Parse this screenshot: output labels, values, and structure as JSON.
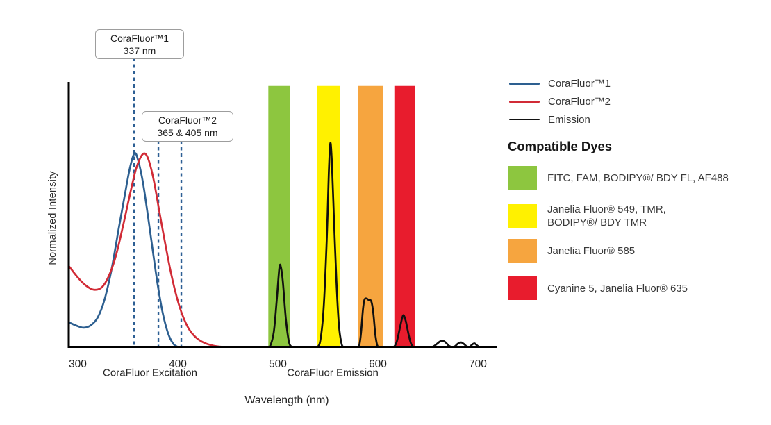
{
  "axes": {
    "y_label": "Normalized Intensity",
    "x_label": "Wavelength (nm)",
    "x_ticks": [
      {
        "value": 300,
        "label": "300"
      },
      {
        "value": 400,
        "label": "400"
      },
      {
        "value": 500,
        "label": "500"
      },
      {
        "value": 600,
        "label": "600"
      },
      {
        "value": 700,
        "label": "700"
      }
    ],
    "section_labels": [
      "CoraFluor Excitation",
      "CoraFluor Emission"
    ]
  },
  "annotations": [
    {
      "title": "CoraFluor™1",
      "subtitle": "337 nm"
    },
    {
      "title": "CoraFluor™2",
      "subtitle": "365 & 405 nm"
    }
  ],
  "legend": {
    "items": [
      {
        "label": "CoraFluor™1",
        "color": "#2d5f90"
      },
      {
        "label": "CoraFluor™2",
        "color": "#d12b36"
      },
      {
        "label": "Emission",
        "color": "#111111"
      }
    ]
  },
  "compatible_dyes": {
    "heading": "Compatible Dyes",
    "items": [
      {
        "color": "#8dc63f",
        "lines": [
          "FITC, FAM, BODIPY®/ BDY FL, AF488"
        ]
      },
      {
        "color": "#fff100",
        "lines": [
          "Janelia Fluor® 549, TMR,",
          "BODIPY®/ BDY TMR"
        ]
      },
      {
        "color": "#f6a53f",
        "lines": [
          "Janelia Fluor® 585"
        ]
      },
      {
        "color": "#e81c2d",
        "lines": [
          "Cyanine 5, Janelia Fluor® 635"
        ]
      }
    ]
  },
  "chart_data": {
    "type": "line",
    "x_unit": "nm",
    "x_range": [
      291.7,
      719.4
    ],
    "ylim": [
      0,
      1
    ],
    "grid": false,
    "excitation_guide_lines_nm": [
      356.3,
      380.6,
      403.5
    ],
    "guide_line_color": "#2d5f94",
    "bands": [
      {
        "name": "green-band",
        "color": "#8dc63f",
        "start_nm": 490.5,
        "end_nm": 512.5,
        "top": 0.985
      },
      {
        "name": "yellow-band",
        "color": "#fff100",
        "start_nm": 539.5,
        "end_nm": 562.5,
        "top": 0.985
      },
      {
        "name": "orange-band",
        "color": "#f6a53f",
        "start_nm": 580.0,
        "end_nm": 605.5,
        "top": 0.985
      },
      {
        "name": "red-band",
        "color": "#e81c2d",
        "start_nm": 616.5,
        "end_nm": 637.5,
        "top": 0.985
      }
    ],
    "series": [
      {
        "name": "CoraFluor™1 excitation",
        "color": "#2d5f90",
        "points": [
          [
            291.7,
            0.095
          ],
          [
            299,
            0.083
          ],
          [
            306,
            0.076
          ],
          [
            313,
            0.085
          ],
          [
            320,
            0.115
          ],
          [
            327,
            0.185
          ],
          [
            334,
            0.3
          ],
          [
            341,
            0.45
          ],
          [
            347,
            0.575
          ],
          [
            352,
            0.675
          ],
          [
            356.5,
            0.731
          ],
          [
            360,
            0.71
          ],
          [
            365,
            0.625
          ],
          [
            370,
            0.5
          ],
          [
            375,
            0.365
          ],
          [
            380,
            0.235
          ],
          [
            385,
            0.13
          ],
          [
            390,
            0.058
          ],
          [
            395,
            0.018
          ],
          [
            400,
            0.003
          ],
          [
            405,
            0
          ]
        ]
      },
      {
        "name": "CoraFluor™2 excitation",
        "color": "#d12b36",
        "points": [
          [
            291.7,
            0.305
          ],
          [
            300,
            0.265
          ],
          [
            308,
            0.235
          ],
          [
            316,
            0.219
          ],
          [
            324,
            0.228
          ],
          [
            331,
            0.27
          ],
          [
            338,
            0.345
          ],
          [
            345,
            0.455
          ],
          [
            352,
            0.575
          ],
          [
            358,
            0.67
          ],
          [
            363,
            0.718
          ],
          [
            367,
            0.731
          ],
          [
            371,
            0.705
          ],
          [
            376,
            0.63
          ],
          [
            381,
            0.525
          ],
          [
            387,
            0.4
          ],
          [
            393,
            0.285
          ],
          [
            399,
            0.19
          ],
          [
            405,
            0.12
          ],
          [
            411,
            0.072
          ],
          [
            418,
            0.04
          ],
          [
            426,
            0.02
          ],
          [
            436,
            0.008
          ],
          [
            448,
            0.002
          ],
          [
            458,
            0
          ]
        ]
      },
      {
        "name": "Emission",
        "color": "#101010",
        "points": [
          [
            440,
            0
          ],
          [
            460,
            0
          ],
          [
            480,
            0
          ],
          [
            488,
            0
          ],
          [
            492,
            0.005
          ],
          [
            496,
            0.06
          ],
          [
            499,
            0.185
          ],
          [
            501.5,
            0.3
          ],
          [
            503,
            0.305
          ],
          [
            505,
            0.25
          ],
          [
            508,
            0.11
          ],
          [
            511,
            0.025
          ],
          [
            514,
            0.003
          ],
          [
            518,
            0
          ],
          [
            526,
            0
          ],
          [
            534,
            0
          ],
          [
            540,
            0.004
          ],
          [
            543,
            0.04
          ],
          [
            546,
            0.16
          ],
          [
            549,
            0.42
          ],
          [
            551,
            0.66
          ],
          [
            552.5,
            0.77
          ],
          [
            554,
            0.7
          ],
          [
            556,
            0.5
          ],
          [
            558.5,
            0.26
          ],
          [
            561,
            0.09
          ],
          [
            563.5,
            0.02
          ],
          [
            566,
            0.002
          ],
          [
            572,
            0
          ],
          [
            578,
            0
          ],
          [
            581,
            0.004
          ],
          [
            583,
            0.05
          ],
          [
            585,
            0.14
          ],
          [
            586.5,
            0.18
          ],
          [
            588.5,
            0.186
          ],
          [
            591,
            0.18
          ],
          [
            593.5,
            0.175
          ],
          [
            595.5,
            0.13
          ],
          [
            597.5,
            0.05
          ],
          [
            599.5,
            0.008
          ],
          [
            602,
            0
          ],
          [
            608,
            0
          ],
          [
            613,
            0
          ],
          [
            616,
            0.003
          ],
          [
            619,
            0.025
          ],
          [
            622,
            0.075
          ],
          [
            624.5,
            0.115
          ],
          [
            626,
            0.122
          ],
          [
            628,
            0.1
          ],
          [
            630.5,
            0.055
          ],
          [
            633,
            0.018
          ],
          [
            635.5,
            0.003
          ],
          [
            638,
            0
          ],
          [
            644,
            0
          ],
          [
            650,
            0
          ],
          [
            654,
            0.002
          ],
          [
            658,
            0.012
          ],
          [
            662,
            0.024
          ],
          [
            665,
            0.027
          ],
          [
            668,
            0.02
          ],
          [
            671,
            0.008
          ],
          [
            674,
            0.003
          ],
          [
            677,
            0.006
          ],
          [
            680,
            0.016
          ],
          [
            683,
            0.021
          ],
          [
            686,
            0.015
          ],
          [
            689,
            0.005
          ],
          [
            691.5,
            0.003
          ],
          [
            694,
            0.012
          ],
          [
            696.5,
            0.017
          ],
          [
            699,
            0.01
          ],
          [
            701.5,
            0.003
          ],
          [
            704,
            0
          ],
          [
            710,
            0
          ],
          [
            716.5,
            0
          ]
        ]
      }
    ]
  }
}
